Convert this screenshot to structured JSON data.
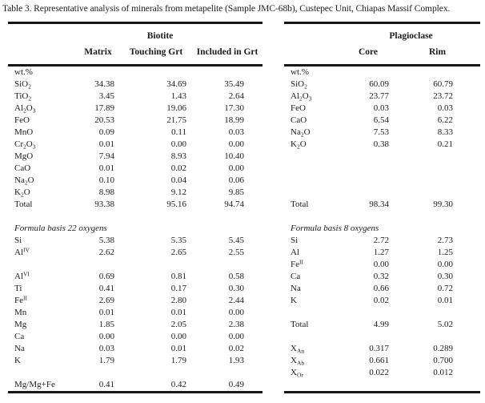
{
  "title": "Table 3. Representative analysis of minerals from metapelite (Sample JMC-68b), Custepec Unit, Chiapas Massif Complex.",
  "colors": {
    "background": "#ffffff",
    "text": "#1c1c1c",
    "rule": "#161616"
  },
  "biotite": {
    "group_label": "Biotite",
    "columns": [
      "Matrix",
      "Touching Grt",
      "Included in Grt"
    ],
    "rows": [
      {
        "label": "wt.%",
        "values": [
          "",
          "",
          ""
        ]
      },
      {
        "label": "SiO_{2}",
        "values": [
          "34.38",
          "34.69",
          "35.49"
        ]
      },
      {
        "label": "TiO_{2}",
        "values": [
          "3.45",
          "1.43",
          "2.64"
        ]
      },
      {
        "label": "Al_{2}O_{3}",
        "values": [
          "17.89",
          "19.06",
          "17.30"
        ]
      },
      {
        "label": "FeO",
        "values": [
          "20.53",
          "21.75",
          "18.99"
        ]
      },
      {
        "label": "MnO",
        "values": [
          "0.09",
          "0.11",
          "0.03"
        ]
      },
      {
        "label": "Cr_{2}O_{3}",
        "values": [
          "0.01",
          "0.00",
          "0.00"
        ]
      },
      {
        "label": "MgO",
        "values": [
          "7.94",
          "8.93",
          "10.40"
        ]
      },
      {
        "label": "CaO",
        "values": [
          "0.01",
          "0.02",
          "0.00"
        ]
      },
      {
        "label": "Na_{2}O",
        "values": [
          "0.10",
          "0.04",
          "0.06"
        ]
      },
      {
        "label": "K_{2}O",
        "values": [
          "8.98",
          "9.12",
          "9.85"
        ]
      },
      {
        "label": "Total",
        "values": [
          "93.38",
          "95.16",
          "94.74"
        ]
      },
      {
        "blank": true
      },
      {
        "section": "Formula basis 22 oxygens"
      },
      {
        "label": "Si",
        "values": [
          "5.38",
          "5.35",
          "5.45"
        ]
      },
      {
        "label": "Al^{IV}",
        "values": [
          "2.62",
          "2.65",
          "2.55"
        ]
      },
      {
        "blank": true
      },
      {
        "label": "Al^{VI}",
        "values": [
          "0.69",
          "0.81",
          "0.58"
        ]
      },
      {
        "label": "Ti",
        "values": [
          "0.41",
          "0.17",
          "0.30"
        ]
      },
      {
        "label": "Fe^{II}",
        "values": [
          "2.69",
          "2.80",
          "2.44"
        ]
      },
      {
        "label": "Mn",
        "values": [
          "0.01",
          "0.01",
          "0.00"
        ]
      },
      {
        "label": "Mg",
        "values": [
          "1.85",
          "2.05",
          "2.38"
        ]
      },
      {
        "label": "Ca",
        "values": [
          "0.00",
          "0.00",
          "0.00"
        ]
      },
      {
        "label": "Na",
        "values": [
          "0.03",
          "0.01",
          "0.02"
        ]
      },
      {
        "label": "K",
        "values": [
          "1.79",
          "1.79",
          "1.93"
        ]
      },
      {
        "blank": true
      },
      {
        "label": "Mg/Mg+Fe",
        "values": [
          "0.41",
          "0.42",
          "0.49"
        ]
      }
    ]
  },
  "plagioclase": {
    "group_label": "Plagioclase",
    "columns": [
      "Core",
      "Rim"
    ],
    "rows": [
      {
        "label": "wt.%",
        "values": [
          "",
          ""
        ]
      },
      {
        "label": "SiO_{2}",
        "values": [
          "60.09",
          "60.79"
        ]
      },
      {
        "label": "Al_{2}O_{3}",
        "values": [
          "23.77",
          "23.72"
        ]
      },
      {
        "label": "FeO",
        "values": [
          "0.03",
          "0.03"
        ]
      },
      {
        "label": "CaO",
        "values": [
          "6.54",
          "6.22"
        ]
      },
      {
        "label": "Na_{2}O",
        "values": [
          "7.53",
          "8.33"
        ]
      },
      {
        "label": "K_{2}O",
        "values": [
          "0.38",
          "0.21"
        ]
      },
      {
        "blank": true
      },
      {
        "blank": true
      },
      {
        "blank": true
      },
      {
        "blank": true
      },
      {
        "label": "Total",
        "values": [
          "98.34",
          "99.30"
        ]
      },
      {
        "blank": true
      },
      {
        "section": "Formula basis 8 oxygens"
      },
      {
        "label": "Si",
        "values": [
          "2.72",
          "2.73"
        ]
      },
      {
        "label": "Al",
        "values": [
          "1.27",
          "1.25"
        ]
      },
      {
        "label": "Fe^{II}",
        "values": [
          "0.00",
          "0.00"
        ]
      },
      {
        "label": "Ca",
        "values": [
          "0.32",
          "0.30"
        ]
      },
      {
        "label": "Na",
        "values": [
          "0.66",
          "0.72"
        ]
      },
      {
        "label": "K",
        "values": [
          "0.02",
          "0.01"
        ]
      },
      {
        "blank": true
      },
      {
        "label": "Total",
        "values": [
          "4.99",
          "5.02"
        ]
      },
      {
        "blank": true
      },
      {
        "label": "X_{An}",
        "values": [
          "0.317",
          "0.289"
        ]
      },
      {
        "label": "X_{Ab}",
        "values": [
          "0.661",
          "0.700"
        ]
      },
      {
        "label": "X_{Or}",
        "values": [
          "0.022",
          "0.012"
        ]
      },
      {
        "blank": true
      }
    ]
  }
}
